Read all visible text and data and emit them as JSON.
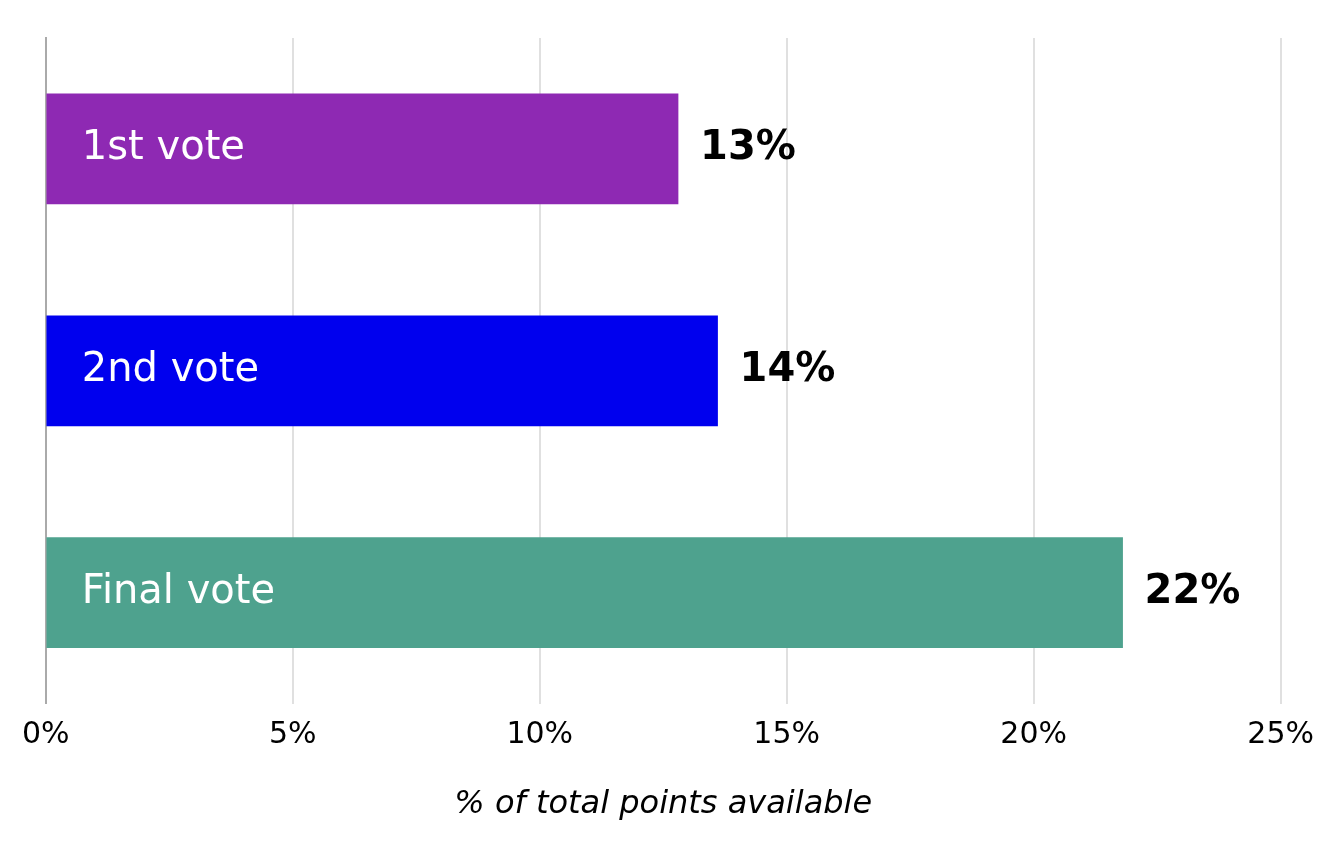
{
  "chart_data": {
    "type": "bar",
    "orientation": "horizontal",
    "categories": [
      "1st vote",
      "2nd vote",
      "Final vote"
    ],
    "values": [
      12.8,
      13.6,
      21.8
    ],
    "colors": [
      "#8e29b3",
      "#0000ee",
      "#4ea28e"
    ],
    "value_labels": [
      "13%",
      "14%",
      "22%"
    ],
    "xlabel": "% of total points available",
    "xlim": [
      0,
      25
    ],
    "xticks": [
      {
        "value": 0,
        "label": "0%"
      },
      {
        "value": 5,
        "label": "5%"
      },
      {
        "value": 10,
        "label": "10%"
      },
      {
        "value": 15,
        "label": "15%"
      },
      {
        "value": 20,
        "label": "20%"
      },
      {
        "value": 25,
        "label": "25%"
      }
    ],
    "grid": "x",
    "legend": false
  }
}
